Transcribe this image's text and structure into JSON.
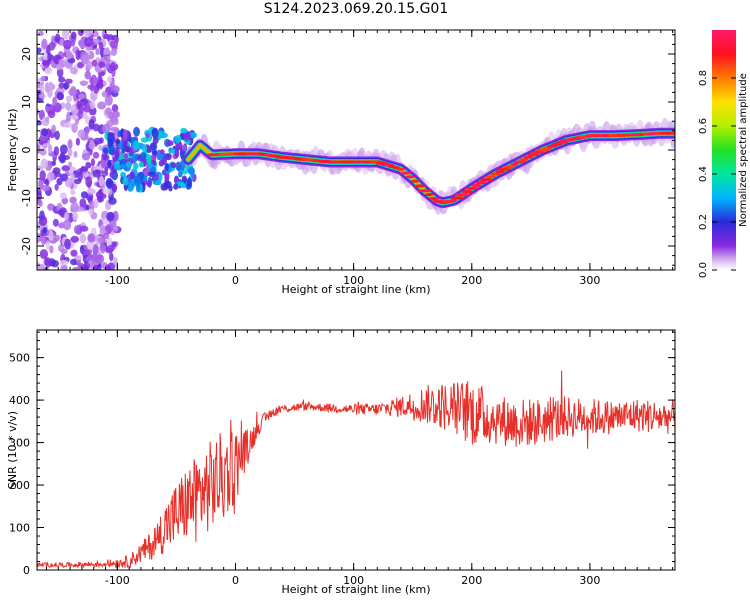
{
  "title": "S124.2023.069.20.15.G01",
  "chart_data": [
    {
      "type": "heatmap",
      "xlabel": "Height of straight line (km)",
      "ylabel": "Frequency (Hz)",
      "xlim": [
        -168,
        372
      ],
      "ylim": [
        -25,
        25
      ],
      "xticks": [
        -100,
        0,
        100,
        200,
        300
      ],
      "yticks": [
        -20,
        -10,
        0,
        10,
        20
      ],
      "grid": false,
      "colorbar": {
        "label": "Normalized spectral amplitude",
        "range": [
          0,
          1
        ],
        "ticks": [
          "0.0",
          "0.2",
          "0.4",
          "0.6",
          "0.8"
        ],
        "colormap": "rainbow"
      },
      "trace": {
        "x": [
          -40,
          -30,
          -20,
          0,
          20,
          40,
          60,
          80,
          100,
          120,
          140,
          150,
          160,
          170,
          175,
          185,
          200,
          220,
          240,
          260,
          280,
          300,
          320,
          340,
          360,
          372
        ],
        "y": [
          -2,
          1,
          -1,
          -0.8,
          -0.8,
          -1.5,
          -2,
          -2.5,
          -2.5,
          -2.5,
          -4,
          -6,
          -8.5,
          -10.5,
          -11,
          -10.5,
          -8,
          -5,
          -2.5,
          0,
          2,
          3,
          3,
          3.2,
          3.5,
          3.5
        ]
      },
      "noise_region": {
        "x_start": -168,
        "x_end": -100
      }
    },
    {
      "type": "line",
      "xlabel": "Height of straight line (km)",
      "ylabel": "SNR (10 * v/v)",
      "xlim": [
        -168,
        372
      ],
      "ylim": [
        0,
        565
      ],
      "xticks": [
        -100,
        0,
        100,
        200,
        300
      ],
      "yticks": [
        0,
        100,
        200,
        300,
        400,
        500
      ],
      "grid": false,
      "color": "#e8302a",
      "series": [
        {
          "x": [
            -168,
            -140,
            -110,
            -90,
            -80,
            -70,
            -60,
            -50,
            -40,
            -30,
            -20,
            -10,
            0,
            10,
            20,
            30,
            40,
            60,
            80,
            100,
            120,
            140,
            160,
            180,
            200,
            220,
            240,
            260,
            280,
            300,
            320,
            340,
            360,
            372
          ],
          "y": [
            12,
            12,
            14,
            20,
            40,
            60,
            100,
            130,
            160,
            180,
            200,
            220,
            250,
            290,
            340,
            370,
            380,
            385,
            382,
            378,
            378,
            385,
            390,
            385,
            370,
            355,
            345,
            350,
            360,
            360,
            360,
            365,
            360,
            360
          ],
          "spread": [
            5,
            6,
            8,
            15,
            25,
            35,
            60,
            80,
            90,
            100,
            110,
            110,
            90,
            40,
            20,
            12,
            10,
            10,
            10,
            12,
            15,
            25,
            45,
            60,
            80,
            60,
            60,
            55,
            50,
            45,
            40,
            40,
            40,
            40
          ]
        }
      ]
    }
  ]
}
